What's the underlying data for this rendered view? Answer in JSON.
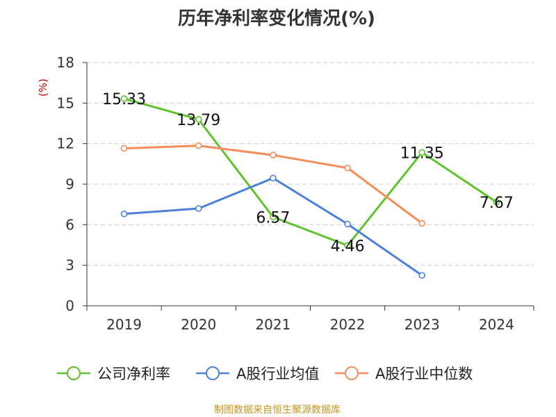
{
  "chart_data": {
    "type": "line",
    "title": "历年净利率变化情况(%)",
    "ylabel": "(%)",
    "xlabel": "",
    "categories": [
      "2019",
      "2020",
      "2021",
      "2022",
      "2023",
      "2024"
    ],
    "ylim": [
      0,
      18
    ],
    "yticks": [
      0,
      3,
      6,
      9,
      12,
      15,
      18
    ],
    "grid": true,
    "legend_position": "bottom",
    "series": [
      {
        "name": "公司净利率",
        "color": "#5ec22a",
        "values": [
          15.33,
          13.79,
          6.57,
          4.46,
          11.35,
          7.67
        ],
        "labels": [
          "15.33",
          "13.79",
          "6.57",
          "4.46",
          "11.35",
          "7.67"
        ],
        "show_labels": true
      },
      {
        "name": "A股行业均值",
        "color": "#4a7fdc",
        "values": [
          6.8,
          7.2,
          9.45,
          6.05,
          2.25,
          null
        ],
        "show_labels": false
      },
      {
        "name": "A股行业中位数",
        "color": "#f78c5a",
        "values": [
          11.65,
          11.85,
          11.15,
          10.2,
          6.1,
          null
        ],
        "show_labels": false
      }
    ]
  },
  "footer": {
    "source": "制图数据来自恒生聚源数据库"
  },
  "colors": {
    "title": "#333333",
    "axis": "#333333",
    "grid": "#cccccc",
    "ylabel": "#cc0000",
    "source": "#c8961c"
  }
}
